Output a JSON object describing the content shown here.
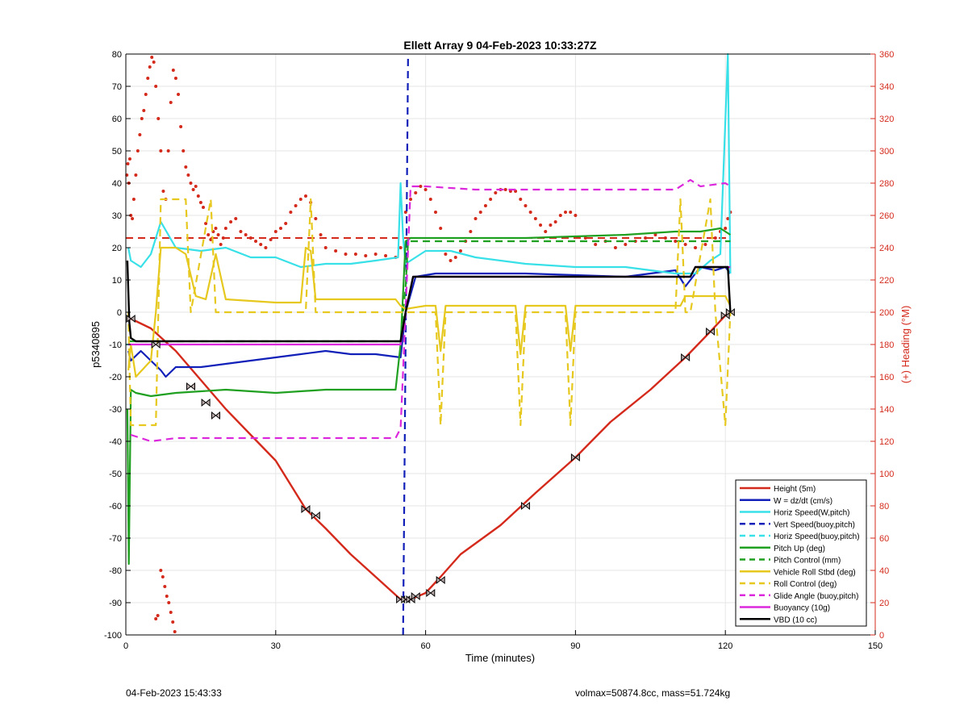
{
  "footer": {
    "timestamp": "04-Feb-2023 15:43:33",
    "stats": "volmax=50874.8cc, mass=51.724kg"
  },
  "chart_data": {
    "type": "line",
    "title": "Ellett Array 9 04-Feb-2023 10:33:27Z",
    "xlabel": "Time (minutes)",
    "ylabel": "p5340895",
    "y2label": "(+) Heading (°M)",
    "xlim": [
      0,
      150
    ],
    "ylim": [
      -100,
      80
    ],
    "y2lim": [
      0,
      360
    ],
    "xticks": [
      "0",
      "30",
      "60",
      "90",
      "120",
      "150"
    ],
    "yticks": [
      "80",
      "70",
      "60",
      "50",
      "40",
      "30",
      "20",
      "10",
      "0",
      "-10",
      "-20",
      "-30",
      "-40",
      "-50",
      "-60",
      "-70",
      "-80",
      "-90",
      "-100"
    ],
    "y2ticks": [
      "360",
      "340",
      "320",
      "300",
      "280",
      "260",
      "240",
      "220",
      "200",
      "180",
      "160",
      "140",
      "120",
      "100",
      "80",
      "60",
      "40",
      "20",
      "0"
    ],
    "grid": true,
    "legend_position": "bottom-right",
    "colors": {
      "red": "#d42a1c",
      "blue": "#1020b8",
      "cyan": "#38e0e8",
      "green": "#20a020",
      "yellow": "#e6c81e",
      "magenta": "#dc28dc",
      "black": "#000000",
      "heading": "#d42a1c"
    },
    "series": [
      {
        "name": "Height (5m)",
        "color": "red",
        "dash": false,
        "x": [
          0.3,
          1,
          5,
          10,
          15,
          20,
          25,
          30,
          36,
          40,
          45,
          50,
          55,
          57,
          60,
          63,
          67,
          75,
          82,
          90,
          97,
          105,
          112,
          117,
          120,
          121
        ],
        "y": [
          -2,
          -2,
          -5,
          -12,
          -21,
          -30,
          -38,
          -46,
          -61,
          -67,
          -75,
          -82,
          -89,
          -89,
          -87,
          -82,
          -75,
          -66,
          -56,
          -45,
          -34,
          -24,
          -14,
          -6,
          -1,
          0
        ]
      },
      {
        "name": "W = dz/dt (cm/s)",
        "color": "blue",
        "dash": false,
        "x": [
          0.5,
          1,
          3,
          5,
          7,
          8,
          10,
          15,
          20,
          25,
          30,
          35,
          40,
          45,
          50,
          55,
          56,
          58,
          62,
          70,
          80,
          90,
          100,
          105,
          110,
          112,
          115,
          118,
          120,
          121
        ],
        "y": [
          -12,
          -15,
          -12,
          -15,
          -18,
          -20,
          -17,
          -17,
          -16,
          -15,
          -14,
          -13,
          -12,
          -13,
          -13,
          -14,
          0,
          11,
          12,
          12,
          12,
          11.5,
          11,
          12,
          13,
          8,
          14,
          13,
          14,
          12
        ]
      },
      {
        "name": "Horiz Speed(W,pitch)",
        "color": "cyan",
        "dash": false,
        "x": [
          0.5,
          1,
          3,
          5,
          7,
          10,
          15,
          20,
          25,
          30,
          35,
          40,
          45,
          50,
          54.5,
          55,
          55.5,
          56,
          58,
          60,
          65,
          70,
          80,
          90,
          100,
          105,
          110,
          114,
          117,
          119,
          120.5,
          121
        ],
        "y": [
          20,
          16,
          14,
          18,
          28,
          20,
          19,
          20,
          17,
          17,
          14,
          15,
          15,
          16,
          17,
          40,
          23,
          15,
          17,
          19,
          19,
          17,
          15,
          14,
          14,
          13,
          12,
          12,
          16,
          18,
          80,
          12
        ]
      },
      {
        "name": "Vert Speed(buoy,pitch)",
        "color": "blue",
        "dash": true,
        "x": [
          55.5,
          56.5
        ],
        "y": [
          -100,
          80
        ]
      },
      {
        "name": "Horiz Speed(buoy,pitch)",
        "color": "cyan",
        "dash": true,
        "x": [
          0,
          1
        ],
        "y": [
          -10,
          -10
        ]
      },
      {
        "name": "Pitch Up (deg)",
        "color": "green",
        "dash": false,
        "x": [
          0.3,
          0.6,
          1,
          2,
          5,
          10,
          20,
          30,
          40,
          50,
          54,
          55,
          56,
          57,
          60,
          70,
          80,
          90,
          100,
          110,
          115,
          119,
          121
        ],
        "y": [
          -30,
          -78,
          -24,
          -25,
          -26,
          -25,
          -24,
          -25,
          -24,
          -24,
          -24,
          -10,
          22,
          23,
          23,
          23,
          23,
          23.5,
          24,
          25,
          25,
          26,
          24
        ]
      },
      {
        "name": "Pitch Control (mm)",
        "color": "green",
        "dash": true,
        "x": [
          0.5,
          1,
          10,
          20,
          30,
          40,
          50,
          55,
          55.5,
          56,
          56.5,
          70,
          90,
          110,
          115,
          121
        ],
        "y": [
          -9,
          -9,
          -9,
          -9,
          -9,
          -9,
          -9,
          -9,
          0,
          8,
          22,
          22,
          22,
          22,
          22,
          22
        ]
      },
      {
        "name": "Vehicle Roll Stbd (deg)",
        "color": "yellow",
        "dash": false,
        "x": [
          0.5,
          1,
          2,
          5,
          6,
          7,
          10,
          12,
          14,
          16,
          18,
          20,
          30,
          35,
          36,
          37,
          38,
          40,
          50,
          54,
          55,
          56,
          60,
          62,
          63,
          64,
          65,
          70,
          78,
          79,
          80,
          81,
          88,
          89,
          90,
          91,
          100,
          110,
          111,
          112,
          115,
          120,
          121
        ],
        "y": [
          -18,
          -10,
          -20,
          -15,
          0,
          20,
          20,
          18,
          5,
          4,
          18,
          4,
          3,
          3,
          20,
          19,
          4,
          4,
          4,
          4,
          2,
          1,
          2,
          2,
          -12,
          2,
          2,
          2,
          2,
          -13,
          2,
          2,
          2,
          -12,
          2,
          2,
          2,
          2,
          2,
          5,
          5,
          5,
          2
        ]
      },
      {
        "name": "Roll Control (deg)",
        "color": "yellow",
        "dash": true,
        "x": [
          0.5,
          1,
          2,
          6,
          7,
          12,
          13,
          17,
          18,
          36,
          37,
          38,
          50,
          55,
          56,
          60,
          62,
          63,
          64,
          78,
          79,
          80,
          81,
          88,
          89,
          90,
          91,
          110,
          111,
          112,
          113,
          117,
          118,
          120,
          121
        ],
        "y": [
          0,
          -35,
          -35,
          -35,
          35,
          35,
          0,
          35,
          0,
          0,
          35,
          0,
          0,
          0,
          0,
          0,
          0,
          -35,
          0,
          0,
          -35,
          0,
          0,
          0,
          -35,
          0,
          0,
          0,
          35,
          0,
          0,
          35,
          0,
          -35,
          0
        ]
      },
      {
        "name": "Glide Angle (buoy,pitch)",
        "color": "magenta",
        "dash": true,
        "x": [
          1,
          5,
          10,
          20,
          30,
          40,
          50,
          54,
          55,
          56,
          57,
          60,
          70,
          80,
          90,
          100,
          110,
          113,
          115,
          120,
          121
        ],
        "y": [
          -38,
          -40,
          -39,
          -39,
          -39,
          -39,
          -39,
          -39,
          -36,
          0,
          39,
          39,
          38,
          38,
          38,
          38,
          38,
          41,
          39,
          40,
          39
        ]
      },
      {
        "name": "Buoyancy (10g)",
        "color": "magenta",
        "dash": false,
        "x": [
          0.5,
          2,
          10,
          30,
          50,
          55,
          56,
          57.5,
          70,
          100,
          113,
          114,
          121
        ],
        "y": [
          -10,
          -10,
          -10,
          -10,
          -10,
          -10,
          0,
          11,
          11,
          11,
          11,
          14,
          14
        ]
      },
      {
        "name": "VBD (10 cc)",
        "color": "black",
        "dash": false,
        "x": [
          0.3,
          0.7,
          1,
          2,
          5,
          10,
          30,
          50,
          55,
          56,
          57.5,
          70,
          100,
          113,
          114,
          120.5,
          121
        ],
        "y": [
          16,
          -3,
          -8,
          -9,
          -9,
          -9,
          -9,
          -9,
          -9,
          0,
          11,
          11,
          11,
          11,
          14,
          14,
          0
        ]
      }
    ],
    "reference_lines": [
      {
        "axis": "right",
        "value": 246,
        "color": "red",
        "dash": true,
        "from_x": 0,
        "to_x": 121
      }
    ],
    "heading_points": {
      "axis": "right",
      "color": "heading",
      "x": [
        0.2,
        0.4,
        0.6,
        0.8,
        1.0,
        1.3,
        1.6,
        2.0,
        2.4,
        2.8,
        3.2,
        3.6,
        4.0,
        4.4,
        4.8,
        5.2,
        5.6,
        6.0,
        6.5,
        7.0,
        7.5,
        8.0,
        8.5,
        9.0,
        9.5,
        10.0,
        10.5,
        11.0,
        11.5,
        12.0,
        12.5,
        13.0,
        13.5,
        14.0,
        14.5,
        15.0,
        15.5,
        16.0,
        16.5,
        17.0,
        17.5,
        18.0,
        18.5,
        19.0,
        19.5,
        20.0,
        21.0,
        22.0,
        23.0,
        24.0,
        25.0,
        26.0,
        27.0,
        28.0,
        29.0,
        30.0,
        31.0,
        32.0,
        33.0,
        34.0,
        35.0,
        36.0,
        37.0,
        38.0,
        39.0,
        40.0,
        42.0,
        44.0,
        46.0,
        48.0,
        50.0,
        52.0,
        54.0,
        55.0,
        56.0,
        57.0,
        58.0,
        59.0,
        60.0,
        61.0,
        62.0,
        63.0,
        64.0,
        65.0,
        66.0,
        67.0,
        68.0,
        69.0,
        70.0,
        71.0,
        72.0,
        73.0,
        74.0,
        75.0,
        76.0,
        77.0,
        78.0,
        79.0,
        80.0,
        81.0,
        82.0,
        83.0,
        84.0,
        85.0,
        86.0,
        87.0,
        88.0,
        89.0,
        90.0,
        92.0,
        94.0,
        96.0,
        98.0,
        100.0,
        102.0,
        104.0,
        106.0,
        108.0,
        110.0,
        112.0,
        114.0,
        116.0,
        118.0,
        119.0,
        120.0,
        120.5,
        121.0,
        7.0,
        7.4,
        7.8,
        8.2,
        8.6,
        9.0,
        9.4,
        9.8,
        6.0,
        6.4
      ],
      "y": [
        285,
        292,
        280,
        295,
        260,
        258,
        270,
        285,
        300,
        310,
        320,
        325,
        335,
        345,
        352,
        358,
        355,
        340,
        320,
        300,
        275,
        270,
        300,
        330,
        350,
        345,
        335,
        315,
        300,
        290,
        285,
        280,
        276,
        278,
        272,
        268,
        265,
        255,
        248,
        245,
        250,
        252,
        248,
        242,
        246,
        252,
        256,
        258,
        250,
        248,
        246,
        244,
        242,
        240,
        245,
        250,
        252,
        255,
        262,
        266,
        270,
        272,
        268,
        258,
        248,
        240,
        238,
        236,
        236,
        235,
        236,
        235,
        234,
        240,
        262,
        270,
        274,
        278,
        276,
        270,
        262,
        252,
        236,
        232,
        234,
        238,
        244,
        250,
        258,
        262,
        266,
        270,
        274,
        276,
        276,
        275,
        275,
        270,
        266,
        262,
        258,
        254,
        250,
        254,
        256,
        260,
        262,
        262,
        260,
        246,
        242,
        244,
        240,
        242,
        244,
        246,
        248,
        246,
        244,
        242,
        240,
        242,
        246,
        250,
        252,
        258,
        262,
        40,
        36,
        30,
        24,
        20,
        14,
        8,
        2,
        10,
        12
      ]
    },
    "markers": {
      "x": [
        1,
        6,
        13,
        16,
        18,
        36,
        38,
        55,
        56,
        57,
        58,
        61,
        63,
        80,
        90,
        112,
        117,
        120,
        121
      ],
      "y": [
        -2,
        -10,
        -23,
        -28,
        -32,
        -61,
        -63,
        -89,
        -89,
        -89,
        -88,
        -87,
        -83,
        -60,
        -45,
        -14,
        -6,
        -1,
        0
      ]
    },
    "legend": [
      "Height (5m)",
      "W = dz/dt (cm/s)",
      "Horiz Speed(W,pitch)",
      "Vert Speed(buoy,pitch)",
      "Horiz Speed(buoy,pitch)",
      "Pitch Up (deg)",
      "Pitch Control (mm)",
      "Vehicle Roll Stbd (deg)",
      "Roll Control (deg)",
      "Glide Angle (buoy,pitch)",
      "Buoyancy (10g)",
      "VBD (10 cc)"
    ]
  }
}
